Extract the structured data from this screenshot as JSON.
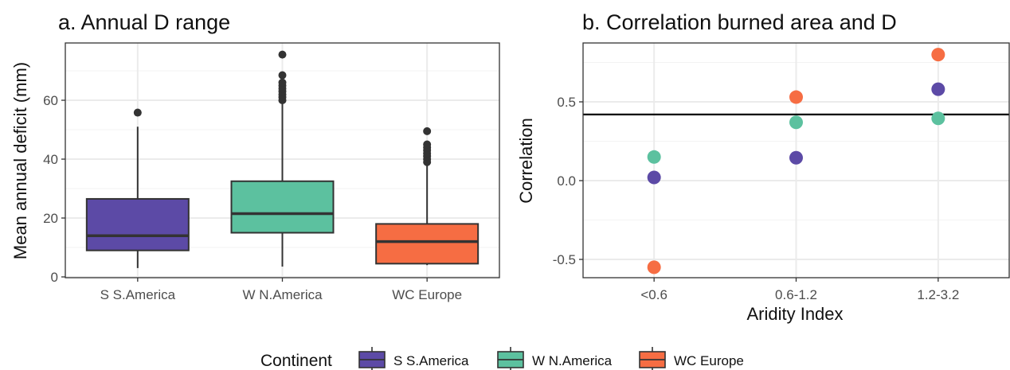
{
  "chart_data": [
    {
      "type": "boxplot",
      "title": "a. Annual D range",
      "xlabel": "",
      "ylabel": "Mean annual deficit (mm)",
      "ylim": [
        0,
        75
      ],
      "yticks": [
        0,
        20,
        40,
        60
      ],
      "categories": [
        "S S.America",
        "W N.America",
        "WC Europe"
      ],
      "grid": true,
      "boxes": [
        {
          "category": "S S.America",
          "min": 3,
          "q1": 9,
          "median": 14,
          "q3": 26.5,
          "max": 51,
          "outliers": [
            55.8
          ],
          "color": "#5c4aa6"
        },
        {
          "category": "W N.America",
          "min": 3.5,
          "q1": 15,
          "median": 21.5,
          "q3": 32.5,
          "max": 59,
          "outliers": [
            60,
            61,
            62,
            63,
            64,
            65,
            66,
            68.5,
            75.5
          ],
          "color": "#5cc19f"
        },
        {
          "category": "WC Europe",
          "min": 4,
          "q1": 4.5,
          "median": 12,
          "q3": 18,
          "max": 38,
          "outliers": [
            39,
            40,
            41,
            42,
            43,
            44,
            45,
            49.5
          ],
          "color": "#f66d43"
        }
      ]
    },
    {
      "type": "scatter",
      "title": "b. Correlation burned area and D",
      "xlabel": "Aridity Index",
      "ylabel": "Correlation",
      "ylim": [
        -0.61,
        0.88
      ],
      "yticks": [
        -0.5,
        0.0,
        0.5
      ],
      "ytick_labels": [
        "-0.5",
        "0.0",
        "0.5"
      ],
      "categories": [
        "<0.6",
        "0.6-1.2",
        "1.2-3.2"
      ],
      "hline": 0.42,
      "grid": true,
      "series": [
        {
          "name": "S S.America",
          "values": [
            0.02,
            0.145,
            0.58
          ],
          "color": "#5c4aa6"
        },
        {
          "name": "W N.America",
          "values": [
            0.15,
            0.37,
            0.395
          ],
          "color": "#5cc19f"
        },
        {
          "name": "WC Europe",
          "values": [
            -0.55,
            0.53,
            0.8
          ],
          "color": "#f66d43"
        }
      ]
    }
  ],
  "legend": {
    "title": "Continent",
    "position": "bottom",
    "items": [
      {
        "label": "S S.America",
        "color": "#5c4aa6"
      },
      {
        "label": "W N.America",
        "color": "#5cc19f"
      },
      {
        "label": "WC Europe",
        "color": "#f66d43"
      }
    ]
  }
}
